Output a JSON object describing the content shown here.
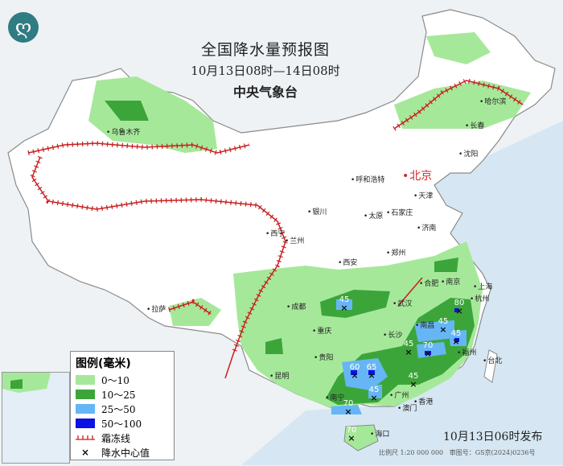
{
  "header": {
    "title": "全国降水量预报图",
    "period": "10月13日08时—14日08时",
    "issuer": "中央气象台",
    "logo": "cma-logo"
  },
  "legend": {
    "title": "图例(毫米)",
    "items": [
      {
        "label": "0～10",
        "color": "#a6e89a"
      },
      {
        "label": "10～25",
        "color": "#3ca53a"
      },
      {
        "label": "25～50",
        "color": "#66b6f5"
      },
      {
        "label": "50～100",
        "color": "#0a12e6"
      }
    ],
    "frost_line": "霜冻线",
    "frost_color": "#c81e1e",
    "center": "降水中心值"
  },
  "cities": [
    "乌鲁木齐",
    "哈尔滨",
    "长春",
    "沈阳",
    "呼和浩特",
    "北京",
    "天津",
    "石家庄",
    "太原",
    "银川",
    "济南",
    "西宁",
    "兰州",
    "郑州",
    "西安",
    "合肥",
    "南京",
    "上海",
    "武汉",
    "成都",
    "拉萨",
    "杭州",
    "重庆",
    "南昌",
    "长沙",
    "贵阳",
    "福州",
    "台北",
    "昆明",
    "南宁",
    "广州",
    "香港",
    "澳门",
    "海口"
  ],
  "precip_centers": [
    45,
    80,
    45,
    45,
    45,
    70,
    60,
    65,
    45,
    45,
    70,
    70
  ],
  "footer": {
    "issued": "10月13日06时发布",
    "scale": "比例尺 1:20 000 000",
    "review": "审图号：GS京(2024)0236号"
  }
}
